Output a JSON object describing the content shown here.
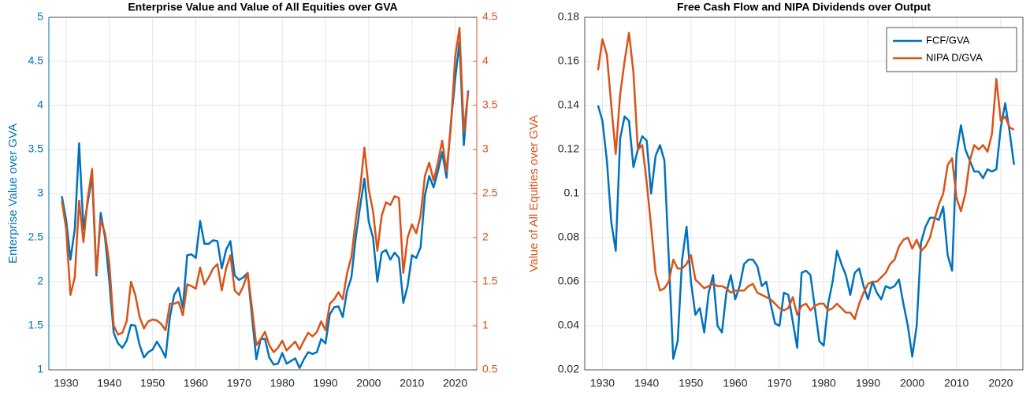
{
  "chart_data": [
    {
      "type": "line",
      "title": "Enterprise Value and Value of All Equities over GVA",
      "ylabel": "Enterprise Value over GVA",
      "y2label": "Value of All Equities over GVA",
      "x": [
        1929,
        1930,
        1931,
        1932,
        1933,
        1934,
        1935,
        1936,
        1937,
        1938,
        1939,
        1940,
        1941,
        1942,
        1943,
        1944,
        1945,
        1946,
        1947,
        1948,
        1949,
        1950,
        1951,
        1952,
        1953,
        1954,
        1955,
        1956,
        1957,
        1958,
        1959,
        1960,
        1961,
        1962,
        1963,
        1964,
        1965,
        1966,
        1967,
        1968,
        1969,
        1970,
        1971,
        1972,
        1973,
        1974,
        1975,
        1976,
        1977,
        1978,
        1979,
        1980,
        1981,
        1982,
        1983,
        1984,
        1985,
        1986,
        1987,
        1988,
        1989,
        1990,
        1991,
        1992,
        1993,
        1994,
        1995,
        1996,
        1997,
        1998,
        1999,
        2000,
        2001,
        2002,
        2003,
        2004,
        2005,
        2006,
        2007,
        2008,
        2009,
        2010,
        2011,
        2012,
        2013,
        2014,
        2015,
        2016,
        2017,
        2018,
        2019,
        2020,
        2021,
        2022,
        2023
      ],
      "series": [
        {
          "name": "Enterprise Value over GVA",
          "color": "#0072BD",
          "axis": "y",
          "values": [
            2.97,
            2.7,
            2.25,
            2.6,
            3.57,
            2.6,
            2.9,
            3.2,
            2.07,
            2.78,
            2.5,
            2.0,
            1.42,
            1.3,
            1.25,
            1.33,
            1.51,
            1.5,
            1.28,
            1.14,
            1.2,
            1.23,
            1.32,
            1.24,
            1.14,
            1.6,
            1.85,
            1.93,
            1.7,
            2.3,
            2.31,
            2.27,
            2.69,
            2.43,
            2.43,
            2.47,
            2.46,
            2.15,
            2.36,
            2.46,
            2.07,
            2.02,
            2.05,
            2.1,
            1.6,
            1.12,
            1.35,
            1.35,
            1.14,
            1.06,
            1.07,
            1.19,
            1.07,
            1.1,
            1.13,
            1.02,
            1.12,
            1.2,
            1.18,
            1.2,
            1.35,
            1.3,
            1.63,
            1.71,
            1.72,
            1.6,
            1.9,
            2.05,
            2.5,
            2.85,
            3.17,
            2.68,
            2.5,
            2.0,
            2.33,
            2.36,
            2.25,
            2.33,
            2.27,
            1.76,
            1.95,
            2.3,
            2.27,
            2.39,
            2.98,
            3.2,
            3.07,
            3.25,
            3.47,
            3.18,
            3.8,
            4.3,
            4.72,
            3.55,
            4.17
          ]
        },
        {
          "name": "Value of All Equities over GVA",
          "color": "#D95319",
          "axis": "y2",
          "values": [
            2.42,
            2.1,
            1.35,
            1.55,
            2.42,
            1.95,
            2.45,
            2.78,
            1.6,
            2.2,
            2.05,
            1.7,
            1.0,
            0.9,
            0.92,
            1.05,
            1.5,
            1.35,
            1.1,
            0.97,
            1.05,
            1.07,
            1.06,
            1.02,
            0.95,
            1.25,
            1.25,
            1.27,
            1.12,
            1.47,
            1.45,
            1.42,
            1.66,
            1.47,
            1.55,
            1.65,
            1.7,
            1.4,
            1.65,
            1.8,
            1.4,
            1.35,
            1.45,
            1.6,
            1.2,
            0.78,
            0.85,
            0.93,
            0.78,
            0.7,
            0.75,
            0.83,
            0.72,
            0.77,
            0.82,
            0.73,
            0.83,
            0.92,
            0.88,
            0.93,
            1.05,
            0.95,
            1.25,
            1.3,
            1.38,
            1.3,
            1.6,
            1.78,
            2.2,
            2.55,
            3.02,
            2.55,
            2.3,
            1.85,
            2.25,
            2.4,
            2.37,
            2.47,
            2.45,
            1.6,
            2.0,
            2.15,
            2.05,
            2.25,
            2.7,
            2.85,
            2.65,
            2.85,
            3.1,
            2.75,
            3.25,
            4.05,
            4.38,
            3.2,
            3.65
          ]
        }
      ],
      "xlim": [
        1926,
        2025
      ],
      "xticks": [
        1930,
        1940,
        1950,
        1960,
        1970,
        1980,
        1990,
        2000,
        2010,
        2020
      ],
      "ylim": [
        1,
        5
      ],
      "yticks": [
        1,
        1.5,
        2,
        2.5,
        3,
        3.5,
        4,
        4.5,
        5
      ],
      "y2lim": [
        0.5,
        4.5
      ],
      "y2ticks": [
        0.5,
        1,
        1.5,
        2,
        2.5,
        3,
        3.5,
        4,
        4.5
      ],
      "grid": true
    },
    {
      "type": "line",
      "title": "Free Cash Flow and NIPA Dividends over Output",
      "x": [
        1929,
        1930,
        1931,
        1932,
        1933,
        1934,
        1935,
        1936,
        1937,
        1938,
        1939,
        1940,
        1941,
        1942,
        1943,
        1944,
        1945,
        1946,
        1947,
        1948,
        1949,
        1950,
        1951,
        1952,
        1953,
        1954,
        1955,
        1956,
        1957,
        1958,
        1959,
        1960,
        1961,
        1962,
        1963,
        1964,
        1965,
        1966,
        1967,
        1968,
        1969,
        1970,
        1971,
        1972,
        1973,
        1974,
        1975,
        1976,
        1977,
        1978,
        1979,
        1980,
        1981,
        1982,
        1983,
        1984,
        1985,
        1986,
        1987,
        1988,
        1989,
        1990,
        1991,
        1992,
        1993,
        1994,
        1995,
        1996,
        1997,
        1998,
        1999,
        2000,
        2001,
        2002,
        2003,
        2004,
        2005,
        2006,
        2007,
        2008,
        2009,
        2010,
        2011,
        2012,
        2013,
        2014,
        2015,
        2016,
        2017,
        2018,
        2019,
        2020,
        2021,
        2022,
        2023
      ],
      "series": [
        {
          "name": "FCF/GVA",
          "color": "#0072BD",
          "values": [
            0.14,
            0.133,
            0.115,
            0.087,
            0.074,
            0.125,
            0.135,
            0.133,
            0.112,
            0.12,
            0.126,
            0.124,
            0.1,
            0.117,
            0.122,
            0.115,
            0.07,
            0.025,
            0.033,
            0.07,
            0.085,
            0.06,
            0.045,
            0.048,
            0.037,
            0.055,
            0.063,
            0.04,
            0.037,
            0.055,
            0.063,
            0.052,
            0.058,
            0.068,
            0.07,
            0.07,
            0.067,
            0.058,
            0.06,
            0.05,
            0.041,
            0.04,
            0.055,
            0.054,
            0.042,
            0.03,
            0.064,
            0.065,
            0.063,
            0.048,
            0.033,
            0.031,
            0.05,
            0.06,
            0.074,
            0.068,
            0.063,
            0.054,
            0.064,
            0.066,
            0.058,
            0.052,
            0.06,
            0.055,
            0.052,
            0.058,
            0.057,
            0.058,
            0.061,
            0.05,
            0.04,
            0.026,
            0.04,
            0.078,
            0.085,
            0.089,
            0.089,
            0.088,
            0.094,
            0.072,
            0.065,
            0.118,
            0.131,
            0.12,
            0.115,
            0.11,
            0.11,
            0.107,
            0.111,
            0.11,
            0.111,
            0.13,
            0.141,
            0.128,
            0.113
          ]
        },
        {
          "name": "NIPA D/GVA",
          "color": "#D95319",
          "values": [
            0.156,
            0.17,
            0.163,
            0.14,
            0.118,
            0.145,
            0.16,
            0.173,
            0.155,
            0.12,
            0.122,
            0.105,
            0.085,
            0.064,
            0.056,
            0.057,
            0.06,
            0.07,
            0.066,
            0.066,
            0.068,
            0.072,
            0.061,
            0.059,
            0.057,
            0.058,
            0.059,
            0.058,
            0.058,
            0.057,
            0.055,
            0.056,
            0.056,
            0.056,
            0.058,
            0.059,
            0.055,
            0.054,
            0.053,
            0.052,
            0.05,
            0.048,
            0.047,
            0.048,
            0.053,
            0.045,
            0.049,
            0.05,
            0.047,
            0.049,
            0.05,
            0.05,
            0.047,
            0.048,
            0.05,
            0.048,
            0.046,
            0.046,
            0.043,
            0.05,
            0.055,
            0.059,
            0.06,
            0.06,
            0.062,
            0.064,
            0.068,
            0.07,
            0.076,
            0.079,
            0.08,
            0.075,
            0.079,
            0.074,
            0.076,
            0.08,
            0.088,
            0.095,
            0.1,
            0.113,
            0.116,
            0.098,
            0.092,
            0.1,
            0.115,
            0.122,
            0.12,
            0.122,
            0.119,
            0.127,
            0.152,
            0.133,
            0.135,
            0.13,
            0.129
          ]
        }
      ],
      "xlim": [
        1926,
        2025
      ],
      "xticks": [
        1930,
        1940,
        1950,
        1960,
        1970,
        1980,
        1990,
        2000,
        2010,
        2020
      ],
      "ylim": [
        0.02,
        0.18
      ],
      "yticks": [
        0.02,
        0.04,
        0.06,
        0.08,
        0.1,
        0.12,
        0.14,
        0.16,
        0.18
      ],
      "grid": true,
      "legend": "northeast"
    }
  ]
}
